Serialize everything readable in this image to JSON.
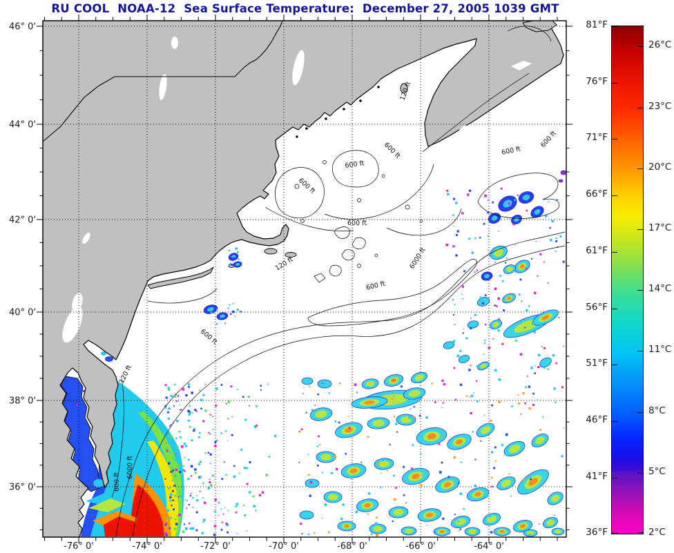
{
  "title": {
    "text": "RU COOL  NOAA-12  Sea Surface Temperature:  December 27, 2005 1039 GMT"
  },
  "axes": {
    "x_labels": [
      "-76° 0'",
      "-74° 0'",
      "-72° 0'",
      "-70° 0'",
      "-68° 0'",
      "-66° 0'",
      "-64° 0'"
    ],
    "y_labels": [
      "46° 0'",
      "44° 0'",
      "42° 0'",
      "40° 0'",
      "38° 0'",
      "36° 0'"
    ]
  },
  "colorbar": {
    "fahrenheit": [
      "81°F",
      "76°F",
      "71°F",
      "66°F",
      "61°F",
      "56°F",
      "51°F",
      "46°F",
      "41°F",
      "36°F"
    ],
    "celsius": [
      "26°C",
      "23°C",
      "20°C",
      "17°C",
      "14°C",
      "11°C",
      "8°C",
      "5°C",
      "2°C"
    ]
  },
  "contours": {
    "c600": "600 ft",
    "c6000": "6000 ft",
    "c120": "120 ft"
  },
  "colors": {
    "title": "#15159c",
    "land": "#c0c0c0",
    "ocean": "#ffffff",
    "coast": "#000000",
    "warm_core": "#ee1200",
    "cold_magenta": "#ff00c8",
    "bay_blue": "#2450f2",
    "shelf_cyan": "#20cbee"
  },
  "chart_data": {
    "type": "heatmap",
    "title": "RU COOL  NOAA-12  Sea Surface Temperature:  December 27, 2005 1039 GMT",
    "x_ticks_longitude_deg": [
      -76,
      -74,
      -72,
      -70,
      -68,
      -66,
      -64
    ],
    "y_ticks_latitude_deg": [
      46,
      44,
      42,
      40,
      38,
      36
    ],
    "colorbar_scale": {
      "left_unit": "°F",
      "right_unit": "°C",
      "ticks_f": [
        81,
        76,
        71,
        66,
        61,
        56,
        51,
        46,
        41,
        36
      ],
      "ticks_c": [
        26,
        23,
        20,
        17,
        14,
        11,
        8,
        5,
        2
      ],
      "range_c": [
        2,
        27
      ],
      "orientation": "vertical",
      "palette_top_to_bottom": [
        "dark red",
        "red",
        "orange",
        "yellow",
        "yellow-green",
        "green",
        "cyan",
        "blue",
        "dark blue",
        "purple",
        "magenta"
      ]
    },
    "depth_contour_labels_ft": [
      120,
      600,
      6000
    ],
    "legend_position": "right"
  }
}
